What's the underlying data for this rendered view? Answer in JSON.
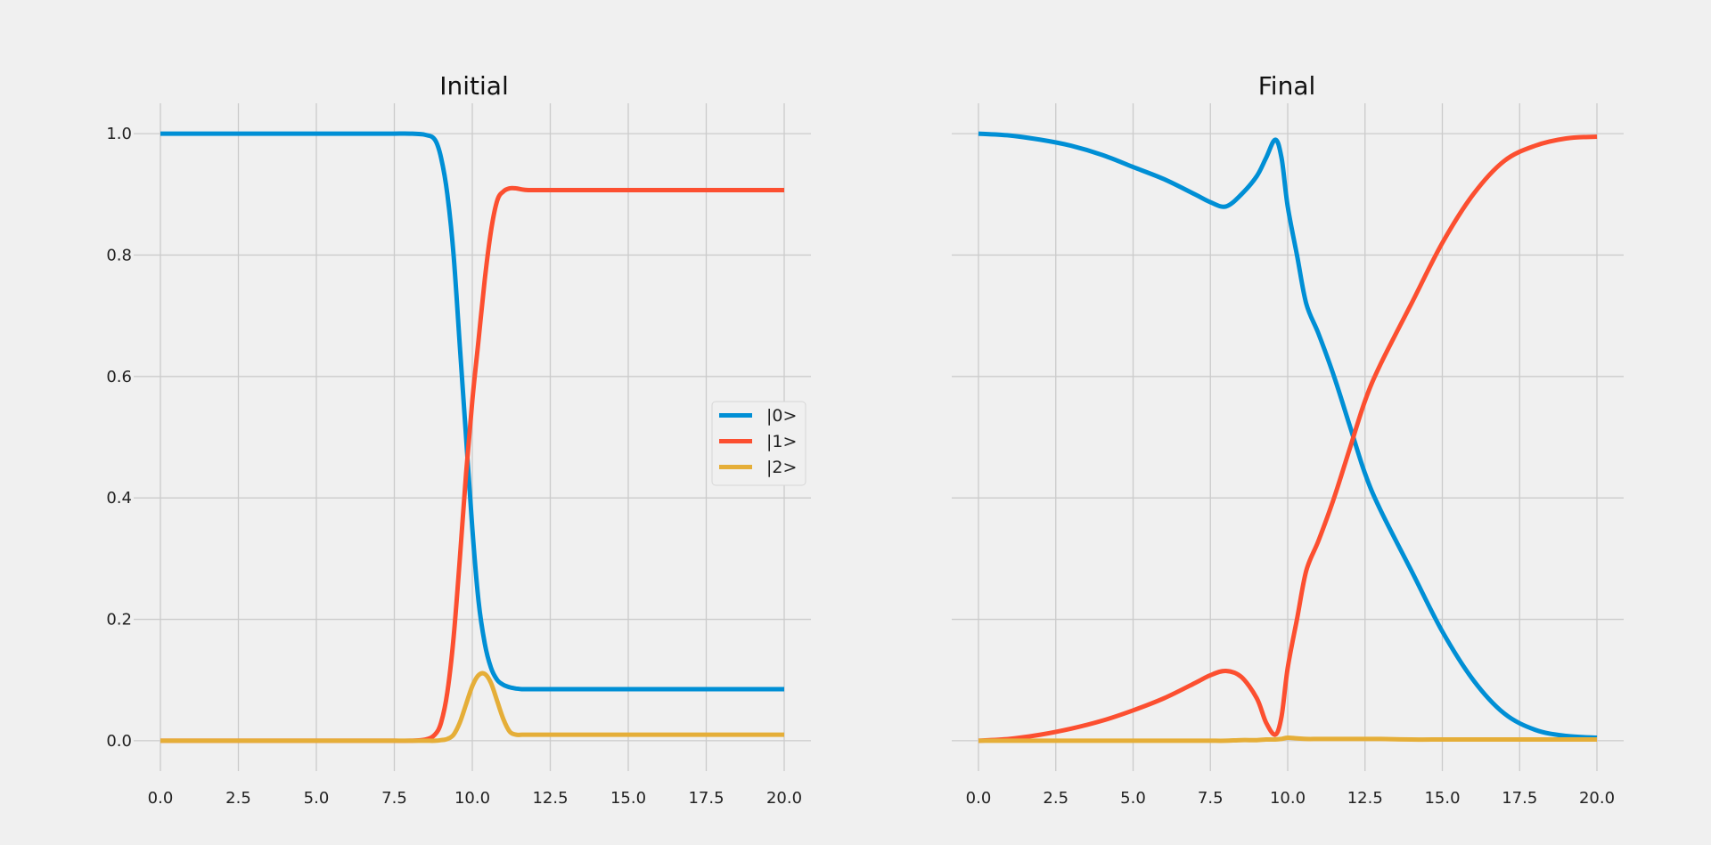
{
  "chart_data": [
    {
      "type": "line",
      "title": "Initial",
      "xlim": [
        0,
        20
      ],
      "ylim": [
        -0.05,
        1.05
      ],
      "xticks": [
        "0.0",
        "2.5",
        "5.0",
        "7.5",
        "10.0",
        "12.5",
        "15.0",
        "17.5",
        "20.0"
      ],
      "yticks": [
        "0.0",
        "0.2",
        "0.4",
        "0.6",
        "0.8",
        "1.0"
      ],
      "grid": true,
      "legend": {
        "placement": "center-right",
        "entries": [
          "|0>",
          "|1>",
          "|2>"
        ]
      },
      "x": [
        0,
        1,
        2,
        3,
        4,
        5,
        6,
        7,
        7.5,
        8,
        8.5,
        8.8,
        9.0,
        9.2,
        9.4,
        9.6,
        9.8,
        10.0,
        10.2,
        10.4,
        10.6,
        10.8,
        11.0,
        11.2,
        11.4,
        11.6,
        11.8,
        12.0,
        12.5,
        13,
        14,
        15,
        16,
        17,
        18,
        19,
        20
      ],
      "series": [
        {
          "name": "|0>",
          "color": "#008fd5",
          "values": [
            1.0,
            1.0,
            1.0,
            1.0,
            1.0,
            1.0,
            1.0,
            1.0,
            1.0,
            1.0,
            0.998,
            0.99,
            0.96,
            0.9,
            0.8,
            0.65,
            0.5,
            0.35,
            0.23,
            0.16,
            0.12,
            0.1,
            0.092,
            0.088,
            0.086,
            0.085,
            0.085,
            0.085,
            0.085,
            0.085,
            0.085,
            0.085,
            0.085,
            0.085,
            0.085,
            0.085,
            0.085
          ]
        },
        {
          "name": "|1>",
          "color": "#fc4f30",
          "values": [
            0.0,
            0.0,
            0.0,
            0.0,
            0.0,
            0.0,
            0.0,
            0.0,
            0.0,
            0.0,
            0.002,
            0.01,
            0.03,
            0.08,
            0.17,
            0.3,
            0.44,
            0.56,
            0.66,
            0.76,
            0.84,
            0.89,
            0.905,
            0.91,
            0.91,
            0.908,
            0.907,
            0.907,
            0.907,
            0.907,
            0.907,
            0.907,
            0.907,
            0.907,
            0.907,
            0.907,
            0.907
          ]
        },
        {
          "name": "|2>",
          "color": "#e5ae38",
          "values": [
            0.0,
            0.0,
            0.0,
            0.0,
            0.0,
            0.0,
            0.0,
            0.0,
            0.0,
            0.0,
            0.0,
            0.0,
            0.001,
            0.003,
            0.01,
            0.03,
            0.06,
            0.09,
            0.108,
            0.11,
            0.095,
            0.065,
            0.035,
            0.015,
            0.01,
            0.01,
            0.01,
            0.01,
            0.01,
            0.01,
            0.01,
            0.01,
            0.01,
            0.01,
            0.01,
            0.01,
            0.01
          ]
        }
      ]
    },
    {
      "type": "line",
      "title": "Final",
      "xlim": [
        0,
        20
      ],
      "ylim": [
        -0.05,
        1.05
      ],
      "xticks": [
        "0.0",
        "2.5",
        "5.0",
        "7.5",
        "10.0",
        "12.5",
        "15.0",
        "17.5",
        "20.0"
      ],
      "yticks": [
        "0.0",
        "0.2",
        "0.4",
        "0.6",
        "0.8",
        "1.0"
      ],
      "grid": true,
      "x": [
        0,
        1,
        2,
        3,
        4,
        5,
        6,
        7,
        7.5,
        8,
        8.5,
        9.0,
        9.3,
        9.6,
        9.8,
        10.0,
        10.3,
        10.6,
        11.0,
        11.5,
        12.0,
        12.5,
        13.0,
        14,
        15,
        16,
        17,
        18,
        19,
        20
      ],
      "series": [
        {
          "name": "|0>",
          "color": "#008fd5",
          "values": [
            1.0,
            0.997,
            0.99,
            0.98,
            0.965,
            0.945,
            0.925,
            0.9,
            0.887,
            0.88,
            0.9,
            0.93,
            0.96,
            0.99,
            0.96,
            0.88,
            0.8,
            0.72,
            0.67,
            0.6,
            0.52,
            0.44,
            0.38,
            0.28,
            0.18,
            0.1,
            0.045,
            0.018,
            0.008,
            0.005
          ]
        },
        {
          "name": "|1>",
          "color": "#fc4f30",
          "values": [
            0.0,
            0.003,
            0.01,
            0.02,
            0.033,
            0.05,
            0.07,
            0.095,
            0.108,
            0.115,
            0.105,
            0.07,
            0.03,
            0.01,
            0.04,
            0.12,
            0.2,
            0.28,
            0.33,
            0.4,
            0.48,
            0.56,
            0.62,
            0.72,
            0.82,
            0.9,
            0.955,
            0.98,
            0.992,
            0.995
          ]
        },
        {
          "name": "|2>",
          "color": "#e5ae38",
          "values": [
            0.0,
            0.0,
            0.0,
            0.0,
            0.0,
            0.0,
            0.0,
            0.0,
            0.0,
            0.0,
            0.001,
            0.001,
            0.002,
            0.002,
            0.003,
            0.005,
            0.004,
            0.003,
            0.003,
            0.003,
            0.003,
            0.003,
            0.003,
            0.002,
            0.002,
            0.002,
            0.002,
            0.002,
            0.002,
            0.002
          ]
        }
      ]
    }
  ]
}
